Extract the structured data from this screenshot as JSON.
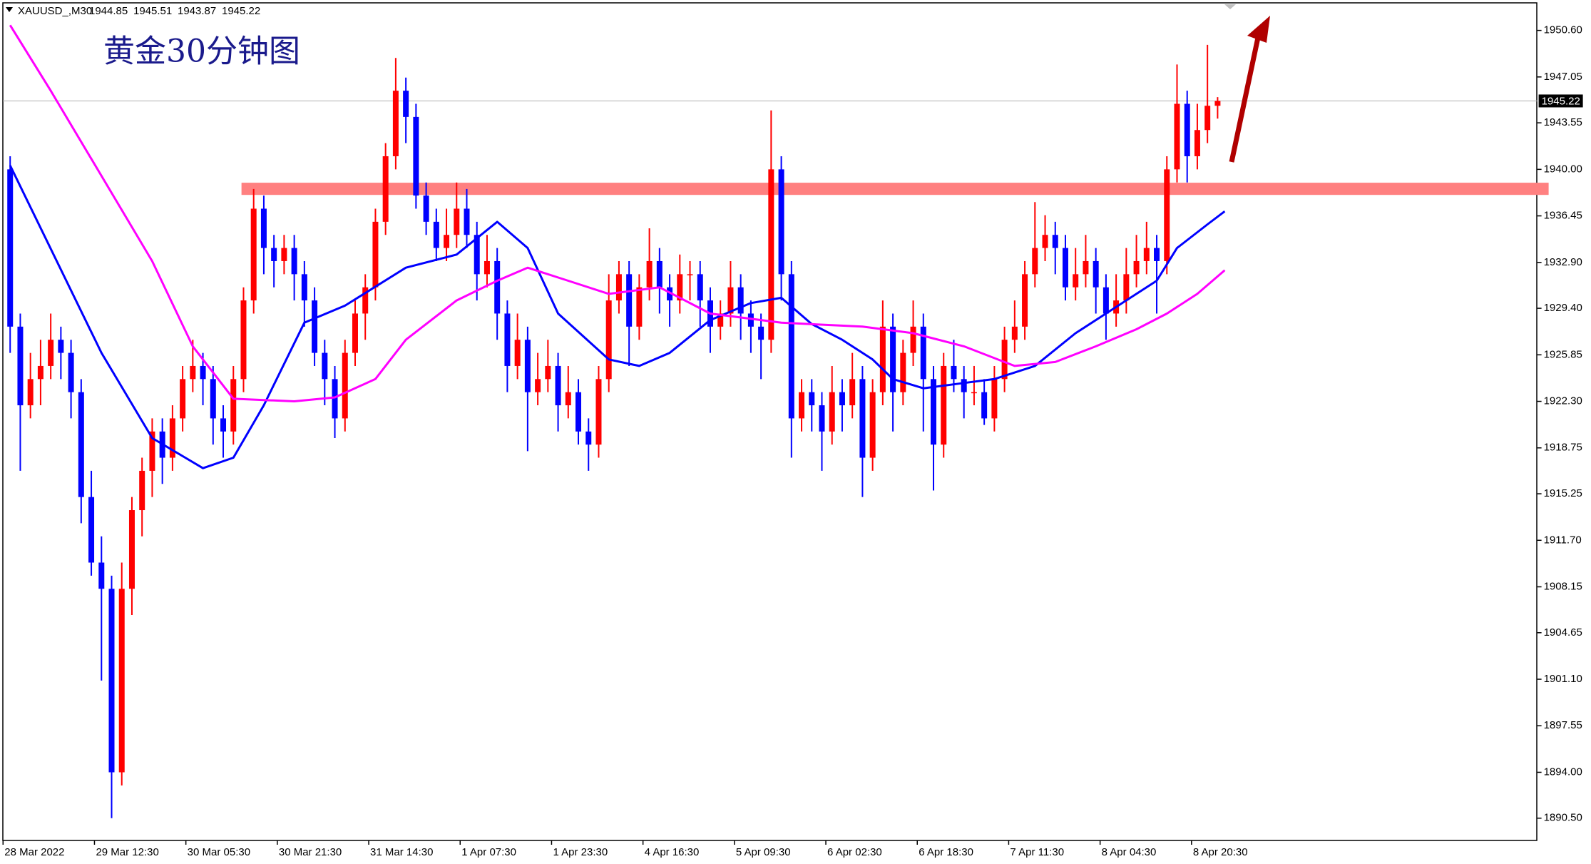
{
  "chart_data": {
    "type": "candlestick",
    "title": "黄金30分钟图",
    "symbol": "XAUUSD_,M30",
    "up_color": "#ff0000",
    "down_color": "#0000ff",
    "ylim": [
      1888.8,
      1952.92
    ],
    "yticks": [
      {
        "value": 1950.6,
        "label": "1950.60"
      },
      1947.05,
      1943.55,
      {
        "value": 1940,
        "label": "1940.00"
      },
      1936.45,
      {
        "value": 1932.9,
        "label": "1932.90"
      },
      {
        "value": 1929.4,
        "label": "1929.40"
      },
      1925.85,
      {
        "value": 1922.3,
        "label": "1922.30"
      },
      1918.75,
      1915.25,
      {
        "value": 1911.7,
        "label": "1911.70"
      },
      1908.15,
      1904.65,
      {
        "value": 1901.1,
        "label": "1901.10"
      },
      1897.55,
      {
        "value": 1894,
        "label": "1894.00"
      },
      {
        "value": 1890.5,
        "label": "1890.50"
      }
    ],
    "grid": false,
    "xlabels": [
      "28 Mar 2022",
      "29 Mar 12:30",
      "30 Mar 05:30",
      "30 Mar 21:30",
      "31 Mar 14:30",
      "1 Apr 07:30",
      "1 Apr 23:30",
      "4 Apr 16:30",
      "5 Apr 09:30",
      "6 Apr 02:30",
      "6 Apr 18:30",
      "7 Apr 11:30",
      "8 Apr 04:30",
      "8 Apr 20:30"
    ],
    "zone": [
      1938.05,
      1938.98
    ],
    "zone_color": "#ff8080",
    "candles": [
      [
        1940,
        1941,
        1926,
        1928
      ],
      [
        1928,
        1929,
        1917,
        1922
      ],
      [
        1922,
        1926,
        1921,
        1924
      ],
      [
        1924,
        1927,
        1922,
        1925
      ],
      [
        1925,
        1929,
        1924,
        1927
      ],
      [
        1927,
        1928,
        1924,
        1926
      ],
      [
        1926,
        1927,
        1921,
        1923
      ],
      [
        1923,
        1924,
        1913,
        1915
      ],
      [
        1915,
        1917,
        1909,
        1910
      ],
      [
        1910,
        1912,
        1901,
        1908
      ],
      [
        1908,
        1909,
        1890.5,
        1894
      ],
      [
        1894,
        1910,
        1893,
        1908
      ],
      [
        1908,
        1915,
        1906,
        1914
      ],
      [
        1914,
        1918,
        1912,
        1917
      ],
      [
        1917,
        1921,
        1915,
        1920
      ],
      [
        1920,
        1921,
        1916,
        1918
      ],
      [
        1918,
        1922,
        1917,
        1921
      ],
      [
        1921,
        1925,
        1920,
        1924
      ],
      [
        1924,
        1927,
        1923,
        1925
      ],
      [
        1925,
        1926,
        1922,
        1924
      ],
      [
        1924,
        1925,
        1919,
        1921
      ],
      [
        1921,
        1922,
        1918,
        1920
      ],
      [
        1920,
        1925,
        1919,
        1924
      ],
      [
        1924,
        1931,
        1923,
        1930
      ],
      [
        1930,
        1938.5,
        1929,
        1937
      ],
      [
        1937,
        1938,
        1932,
        1934
      ],
      [
        1934,
        1935,
        1931,
        1933
      ],
      [
        1933,
        1935,
        1932,
        1934
      ],
      [
        1934,
        1935,
        1930,
        1932
      ],
      [
        1932,
        1933,
        1928,
        1930
      ],
      [
        1930,
        1931,
        1925,
        1926
      ],
      [
        1926,
        1927,
        1922,
        1924
      ],
      [
        1924,
        1925,
        1919.5,
        1921
      ],
      [
        1921,
        1927,
        1920,
        1926
      ],
      [
        1926,
        1930,
        1925,
        1929
      ],
      [
        1929,
        1932,
        1927,
        1931
      ],
      [
        1931,
        1937,
        1930,
        1936
      ],
      [
        1936,
        1942,
        1935,
        1941
      ],
      [
        1941,
        1948.5,
        1940,
        1946
      ],
      [
        1946,
        1947,
        1942,
        1944
      ],
      [
        1944,
        1945,
        1937,
        1938
      ],
      [
        1938,
        1939,
        1935,
        1936
      ],
      [
        1936,
        1937,
        1933,
        1934
      ],
      [
        1934,
        1937,
        1933,
        1935
      ],
      [
        1935,
        1939,
        1934,
        1937
      ],
      [
        1937,
        1938.5,
        1934,
        1935
      ],
      [
        1935,
        1936,
        1930,
        1932
      ],
      [
        1932,
        1935,
        1931,
        1933
      ],
      [
        1933,
        1934,
        1927,
        1929
      ],
      [
        1929,
        1930,
        1923,
        1925
      ],
      [
        1925,
        1929,
        1924,
        1927
      ],
      [
        1927,
        1928,
        1918.5,
        1923
      ],
      [
        1923,
        1926,
        1922,
        1924
      ],
      [
        1924,
        1927,
        1923,
        1925
      ],
      [
        1925,
        1926,
        1920,
        1922
      ],
      [
        1922,
        1925,
        1921,
        1923
      ],
      [
        1923,
        1924,
        1919,
        1920
      ],
      [
        1920,
        1921,
        1917,
        1919
      ],
      [
        1919,
        1925,
        1918,
        1924
      ],
      [
        1924,
        1932,
        1923,
        1930
      ],
      [
        1930,
        1933,
        1929,
        1932
      ],
      [
        1932,
        1933,
        1925,
        1928
      ],
      [
        1928,
        1932,
        1927,
        1931
      ],
      [
        1931,
        1935.5,
        1930,
        1933
      ],
      [
        1933,
        1934,
        1929,
        1931
      ],
      [
        1931,
        1932,
        1928,
        1930
      ],
      [
        1930,
        1933.5,
        1929,
        1932
      ],
      [
        1932,
        1933,
        1930,
        1932
      ],
      [
        1932,
        1933,
        1928,
        1930
      ],
      [
        1930,
        1931,
        1926,
        1928
      ],
      [
        1928,
        1930,
        1927,
        1929
      ],
      [
        1929,
        1933,
        1928,
        1931
      ],
      [
        1931,
        1932,
        1927,
        1929
      ],
      [
        1929,
        1930,
        1926,
        1928
      ],
      [
        1928,
        1929,
        1924,
        1927
      ],
      [
        1927,
        1944.5,
        1926,
        1940
      ],
      [
        1940,
        1941,
        1930,
        1932
      ],
      [
        1932,
        1933,
        1918,
        1921
      ],
      [
        1921,
        1924,
        1920,
        1923
      ],
      [
        1923,
        1924,
        1920,
        1922
      ],
      [
        1922,
        1923,
        1917,
        1920
      ],
      [
        1920,
        1925,
        1919,
        1923
      ],
      [
        1923,
        1924,
        1920,
        1922
      ],
      [
        1922,
        1926,
        1921,
        1924
      ],
      [
        1924,
        1925,
        1915,
        1918
      ],
      [
        1918,
        1924,
        1917,
        1923
      ],
      [
        1923,
        1930,
        1922,
        1928
      ],
      [
        1928,
        1929,
        1920,
        1923
      ],
      [
        1923,
        1927,
        1922,
        1926
      ],
      [
        1926,
        1930,
        1925,
        1928
      ],
      [
        1928,
        1929,
        1920,
        1924
      ],
      [
        1924,
        1925,
        1915.5,
        1919
      ],
      [
        1919,
        1926,
        1918,
        1925
      ],
      [
        1925,
        1927,
        1923,
        1924
      ],
      [
        1924,
        1925,
        1921,
        1923
      ],
      [
        1923,
        1925,
        1922,
        1923
      ],
      [
        1923,
        1924,
        1920.5,
        1921
      ],
      [
        1921,
        1925,
        1920,
        1924
      ],
      [
        1924,
        1928,
        1923,
        1927
      ],
      [
        1927,
        1930,
        1926,
        1928
      ],
      [
        1928,
        1933,
        1927,
        1932
      ],
      [
        1932,
        1937.5,
        1931,
        1934
      ],
      [
        1934,
        1936.5,
        1933,
        1935
      ],
      [
        1935,
        1936,
        1932,
        1934
      ],
      [
        1934,
        1935,
        1930,
        1931
      ],
      [
        1931,
        1934,
        1930,
        1932
      ],
      [
        1932,
        1935,
        1931,
        1933
      ],
      [
        1933,
        1934,
        1929,
        1931
      ],
      [
        1931,
        1932,
        1927,
        1929
      ],
      [
        1929,
        1932,
        1928,
        1930
      ],
      [
        1930,
        1934,
        1929,
        1932
      ],
      [
        1932,
        1935,
        1931,
        1933
      ],
      [
        1933,
        1936,
        1932,
        1934
      ],
      [
        1934,
        1935,
        1929,
        1933
      ],
      [
        1933,
        1941,
        1932,
        1940
      ],
      [
        1940,
        1948,
        1939,
        1945
      ],
      [
        1945,
        1946,
        1939,
        1941
      ],
      [
        1941,
        1945,
        1940,
        1943
      ],
      [
        1943,
        1949.5,
        1942,
        1944.85
      ],
      [
        1944.85,
        1945.51,
        1943.87,
        1945.22
      ]
    ],
    "lines": [
      {
        "color": "#0000ff",
        "x": [
          0,
          9,
          14,
          19,
          22,
          25,
          29,
          33,
          39,
          44,
          48,
          51,
          54,
          59,
          62,
          65,
          69,
          73,
          76,
          79,
          82,
          85,
          87,
          90,
          94,
          97,
          101,
          105,
          109,
          113,
          115,
          118,
          119.7
        ],
        "values": [
          1940.3,
          1926,
          1919.5,
          1917.2,
          1918,
          1922,
          1928.3,
          1929.6,
          1932.5,
          1933.5,
          1936,
          1934,
          1929,
          1925.5,
          1925,
          1926,
          1928.5,
          1929.8,
          1930.2,
          1928.2,
          1927,
          1925.5,
          1924,
          1923.3,
          1923.7,
          1924,
          1925,
          1927.5,
          1929.5,
          1931.5,
          1934,
          1935.8,
          1936.8
        ]
      },
      {
        "color": "#ff00ff",
        "x": [
          0,
          4,
          9,
          14,
          18,
          22,
          28,
          32,
          36,
          39,
          44,
          48,
          51,
          55,
          59,
          64,
          69,
          76,
          84,
          89,
          94,
          99,
          103,
          107,
          111,
          114,
          117,
          119.7
        ],
        "values": [
          1951,
          1946,
          1939.5,
          1933,
          1926.5,
          1922.5,
          1922.3,
          1922.6,
          1924,
          1927,
          1930,
          1931.5,
          1932.5,
          1931.5,
          1930.5,
          1931,
          1929,
          1928.3,
          1928,
          1927.5,
          1926.5,
          1925,
          1925.3,
          1926.5,
          1927.8,
          1929,
          1930.5,
          1932.3
        ]
      }
    ]
  }
}
